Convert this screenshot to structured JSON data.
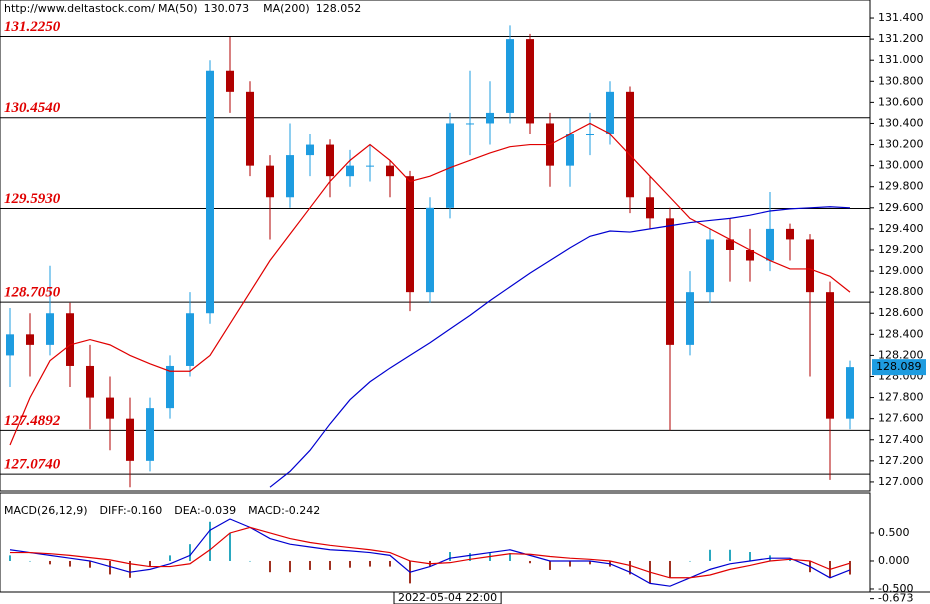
{
  "chart_data": {
    "type": "candlestick",
    "source": "http://www.deltastock.com/",
    "up_color": "#1e9ce0",
    "down_color": "#b00000",
    "ohlc": [
      [
        128.2,
        128.65,
        127.9,
        128.4
      ],
      [
        128.4,
        128.6,
        128.0,
        128.3
      ],
      [
        128.3,
        129.05,
        128.2,
        128.6
      ],
      [
        128.6,
        128.7,
        127.9,
        128.1
      ],
      [
        128.1,
        128.3,
        127.5,
        127.8
      ],
      [
        127.8,
        128.0,
        127.3,
        127.6
      ],
      [
        127.6,
        127.8,
        126.95,
        127.2
      ],
      [
        127.2,
        127.8,
        127.1,
        127.7
      ],
      [
        127.7,
        128.2,
        127.6,
        128.1
      ],
      [
        128.1,
        128.8,
        128.0,
        128.6
      ],
      [
        128.6,
        131.0,
        128.5,
        130.9
      ],
      [
        130.9,
        131.22,
        130.5,
        130.7
      ],
      [
        130.7,
        130.8,
        129.9,
        130.0
      ],
      [
        130.0,
        130.1,
        129.3,
        129.7
      ],
      [
        129.7,
        130.4,
        129.6,
        130.1
      ],
      [
        130.1,
        130.3,
        129.9,
        130.2
      ],
      [
        130.2,
        130.25,
        129.7,
        129.9
      ],
      [
        129.9,
        130.15,
        129.8,
        130.0
      ],
      [
        130.0,
        130.2,
        129.85,
        130.0
      ],
      [
        130.0,
        130.05,
        129.7,
        129.9
      ],
      [
        129.9,
        129.95,
        128.62,
        128.8
      ],
      [
        128.8,
        129.7,
        128.7,
        129.6
      ],
      [
        129.6,
        130.5,
        129.5,
        130.4
      ],
      [
        130.4,
        130.9,
        130.1,
        130.4
      ],
      [
        130.4,
        130.8,
        130.2,
        130.5
      ],
      [
        130.5,
        131.33,
        130.4,
        131.2
      ],
      [
        131.2,
        131.25,
        130.3,
        130.4
      ],
      [
        130.4,
        130.5,
        129.8,
        130.0
      ],
      [
        130.0,
        130.45,
        129.8,
        130.3
      ],
      [
        130.3,
        130.5,
        130.1,
        130.3
      ],
      [
        130.3,
        130.8,
        130.2,
        130.7
      ],
      [
        130.7,
        130.75,
        129.55,
        129.7
      ],
      [
        129.7,
        129.9,
        129.4,
        129.5
      ],
      [
        129.5,
        129.6,
        127.49,
        128.3
      ],
      [
        128.3,
        129.0,
        128.2,
        128.8
      ],
      [
        128.8,
        129.4,
        128.7,
        129.3
      ],
      [
        129.3,
        129.5,
        128.9,
        129.2
      ],
      [
        129.2,
        129.4,
        128.9,
        129.1
      ],
      [
        129.1,
        129.75,
        129.0,
        129.4
      ],
      [
        129.4,
        129.45,
        129.1,
        129.3
      ],
      [
        129.3,
        129.35,
        128.0,
        128.8
      ],
      [
        128.8,
        128.9,
        127.02,
        127.6
      ],
      [
        127.6,
        128.15,
        127.5,
        128.089
      ]
    ],
    "series": [
      {
        "name": "MA(50)",
        "last": 130.073,
        "color": "#e00000",
        "values": [
          127.35,
          127.8,
          128.15,
          128.3,
          128.35,
          128.3,
          128.2,
          128.12,
          128.05,
          128.05,
          128.2,
          128.5,
          128.8,
          129.1,
          129.35,
          129.6,
          129.85,
          130.05,
          130.2,
          130.05,
          129.85,
          129.9,
          129.98,
          130.05,
          130.12,
          130.18,
          130.2,
          130.2,
          130.3,
          130.4,
          130.3,
          130.1,
          129.9,
          129.7,
          129.5,
          129.4,
          129.3,
          129.2,
          129.1,
          129.02,
          129.02,
          128.95,
          128.8
        ]
      },
      {
        "name": "MA(200)",
        "last": 128.052,
        "color": "#0000d0",
        "values": [
          null,
          null,
          null,
          null,
          null,
          null,
          null,
          null,
          null,
          null,
          null,
          null,
          null,
          126.95,
          127.1,
          127.3,
          127.55,
          127.78,
          127.95,
          128.08,
          128.2,
          128.32,
          128.45,
          128.58,
          128.72,
          128.85,
          128.98,
          129.1,
          129.22,
          129.33,
          129.38,
          129.37,
          129.4,
          129.43,
          129.46,
          129.48,
          129.5,
          129.53,
          129.57,
          129.59,
          129.6,
          129.61,
          129.6
        ]
      }
    ],
    "ylim": [
      126.914,
      131.571
    ],
    "yticks": [
      {
        "value": 127.0,
        "label": "127.000"
      },
      {
        "value": 127.2,
        "label": "127.200"
      },
      {
        "value": 127.4,
        "label": "127.400"
      },
      {
        "value": 127.6,
        "label": "127.600"
      },
      {
        "value": 127.8,
        "label": "127.800"
      },
      {
        "value": 128.0,
        "label": "128.000"
      },
      {
        "value": 128.2,
        "label": "128.200"
      },
      {
        "value": 128.4,
        "label": "128.400"
      },
      {
        "value": 128.6,
        "label": "128.600"
      },
      {
        "value": 128.8,
        "label": "128.800"
      },
      {
        "value": 129.0,
        "label": "129.000"
      },
      {
        "value": 129.2,
        "label": "129.200"
      },
      {
        "value": 129.4,
        "label": "129.400"
      },
      {
        "value": 129.6,
        "label": "129.600"
      },
      {
        "value": 129.8,
        "label": "129.800"
      },
      {
        "value": 130.0,
        "label": "130.000"
      },
      {
        "value": 130.2,
        "label": "130.200"
      },
      {
        "value": 130.4,
        "label": "130.400"
      },
      {
        "value": 130.6,
        "label": "130.600"
      },
      {
        "value": 130.8,
        "label": "130.800"
      },
      {
        "value": 131.0,
        "label": "131.000"
      },
      {
        "value": 131.2,
        "label": "131.200"
      },
      {
        "value": 131.4,
        "label": "131.400"
      }
    ],
    "levels": [
      {
        "value": 131.225,
        "label": "131.2250"
      },
      {
        "value": 130.454,
        "label": "130.4540"
      },
      {
        "value": 129.593,
        "label": "129.5930"
      },
      {
        "value": 128.705,
        "label": "128.7050"
      },
      {
        "value": 127.4892,
        "label": "127.4892"
      },
      {
        "value": 127.074,
        "label": "127.0740"
      }
    ],
    "last_price": 128.089,
    "date_marker": "2022-05-04 22:00",
    "macd": {
      "title": "MACD(26,12,9)",
      "diff_label": "DIFF:-0.160",
      "dea_label": "DEA:-0.039",
      "macd_label": "MACD:-0.242",
      "diff_color": "#0000d0",
      "dea_color": "#e00000",
      "pos_color": "#2aa8c0",
      "neg_color": "#a03020",
      "diff": [
        0.2,
        0.15,
        0.1,
        0.05,
        0.0,
        -0.1,
        -0.2,
        -0.15,
        -0.05,
        0.1,
        0.55,
        0.75,
        0.6,
        0.4,
        0.3,
        0.25,
        0.2,
        0.18,
        0.15,
        0.1,
        -0.2,
        -0.1,
        0.05,
        0.1,
        0.15,
        0.2,
        0.1,
        0.0,
        0.0,
        0.0,
        -0.05,
        -0.2,
        -0.4,
        -0.45,
        -0.3,
        -0.15,
        -0.05,
        0.0,
        0.05,
        0.05,
        -0.1,
        -0.3,
        -0.16
      ],
      "dea": [
        0.15,
        0.15,
        0.13,
        0.1,
        0.06,
        0.02,
        -0.05,
        -0.1,
        -0.1,
        -0.05,
        0.2,
        0.5,
        0.6,
        0.5,
        0.4,
        0.33,
        0.28,
        0.24,
        0.2,
        0.15,
        0.0,
        -0.05,
        -0.03,
        0.03,
        0.08,
        0.13,
        0.12,
        0.08,
        0.05,
        0.03,
        0.0,
        -0.08,
        -0.2,
        -0.3,
        -0.3,
        -0.25,
        -0.15,
        -0.08,
        0.0,
        0.03,
        0.0,
        -0.15,
        -0.039
      ],
      "hist": [
        0.1,
        0,
        -0.06,
        -0.1,
        -0.12,
        -0.24,
        -0.3,
        -0.1,
        0.1,
        0.3,
        0.7,
        0.5,
        0,
        -0.2,
        -0.2,
        -0.16,
        -0.16,
        -0.12,
        -0.1,
        -0.1,
        -0.4,
        -0.1,
        0.16,
        0.14,
        0.14,
        0.14,
        -0.04,
        -0.16,
        -0.1,
        -0.06,
        -0.1,
        -0.24,
        -0.4,
        -0.3,
        0,
        0.2,
        0.2,
        0.16,
        0.1,
        0.04,
        -0.2,
        -0.3,
        -0.242
      ],
      "ylim": [
        -0.554,
        1.214
      ],
      "yticks": [
        {
          "value": 0.5,
          "label": "0.500"
        },
        {
          "value": 0,
          "label": "0.000"
        },
        {
          "value": -0.5,
          "label": "-0.500"
        },
        {
          "value": -0.673,
          "label": "-0.673"
        }
      ]
    }
  }
}
